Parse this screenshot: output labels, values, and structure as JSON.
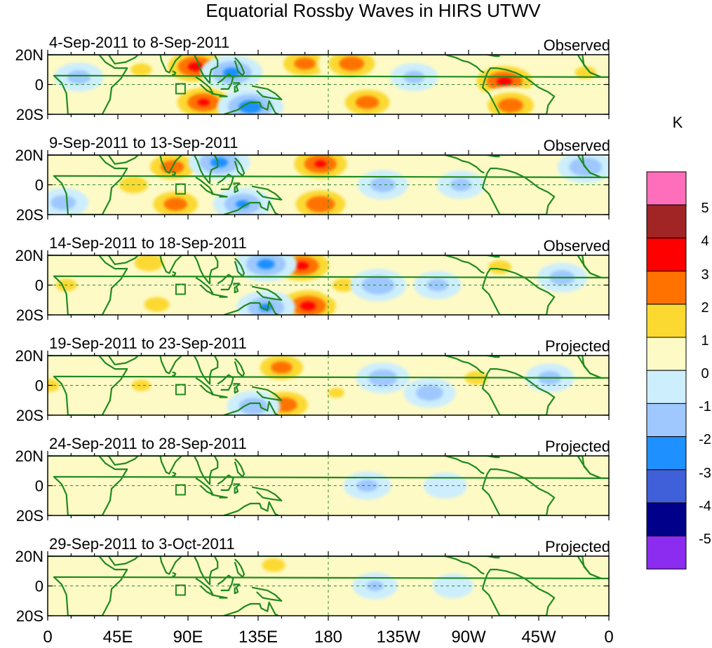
{
  "title": "Equatorial Rossby Waves in HIRS UTWV",
  "panels": [
    {
      "date_range": "4-Sep-2011 to 8-Sep-2011",
      "status": "Observed"
    },
    {
      "date_range": "9-Sep-2011 to 13-Sep-2011",
      "status": "Observed"
    },
    {
      "date_range": "14-Sep-2011 to 18-Sep-2011",
      "status": "Observed"
    },
    {
      "date_range": "19-Sep-2011 to 23-Sep-2011",
      "status": "Projected"
    },
    {
      "date_range": "24-Sep-2011 to 28-Sep-2011",
      "status": "Projected"
    },
    {
      "date_range": "29-Sep-2011 to 3-Oct-2011",
      "status": "Projected"
    }
  ],
  "lat_labels": [
    "20N",
    "0",
    "20S"
  ],
  "lon_labels": [
    "0",
    "45E",
    "90E",
    "135E",
    "180",
    "135W",
    "90W",
    "45W",
    "0"
  ],
  "colorbar": {
    "unit": "K",
    "colors": [
      "#8b2cf0",
      "#00008b",
      "#3f60d8",
      "#1e90ff",
      "#9ec8ff",
      "#cdeefc",
      "#fdfac6",
      "#fcd930",
      "#ff7200",
      "#ff0000",
      "#a12525",
      "#ff6eba"
    ],
    "tick_labels": [
      "-5",
      "-4",
      "-3",
      "-2",
      "-1",
      "0",
      "1",
      "2",
      "3",
      "4",
      "5"
    ]
  },
  "anomaly_blobs": [
    [
      {
        "lon": 95,
        "lat": 12,
        "value": 3.2
      },
      {
        "lon": 100,
        "lat": -12,
        "value": 3.0
      },
      {
        "lon": 118,
        "lat": 8,
        "value": -2.2
      },
      {
        "lon": 130,
        "lat": -15,
        "value": -2.5
      },
      {
        "lon": 165,
        "lat": 14,
        "value": 2.4
      },
      {
        "lon": 195,
        "lat": 14,
        "value": 2.6
      },
      {
        "lon": 205,
        "lat": -12,
        "value": 2.5
      },
      {
        "lon": 293,
        "lat": 2,
        "value": 3.2
      },
      {
        "lon": 297,
        "lat": -14,
        "value": 2.6
      },
      {
        "lon": 235,
        "lat": 5,
        "value": -1.2
      },
      {
        "lon": 20,
        "lat": 5,
        "value": -1.3
      },
      {
        "lon": 60,
        "lat": 10,
        "value": 1.2
      },
      {
        "lon": 345,
        "lat": 8,
        "value": 1.2
      }
    ],
    [
      {
        "lon": 80,
        "lat": 12,
        "value": 2.5
      },
      {
        "lon": 82,
        "lat": -13,
        "value": 2.5
      },
      {
        "lon": 110,
        "lat": 15,
        "value": -2.2
      },
      {
        "lon": 125,
        "lat": -13,
        "value": -2.0
      },
      {
        "lon": 175,
        "lat": 14,
        "value": 3.0
      },
      {
        "lon": 175,
        "lat": -13,
        "value": 2.8
      },
      {
        "lon": 55,
        "lat": 0,
        "value": 1.6
      },
      {
        "lon": 215,
        "lat": 0,
        "value": -1.4
      },
      {
        "lon": 265,
        "lat": 0,
        "value": -1.2
      },
      {
        "lon": 345,
        "lat": 12,
        "value": -1.8
      },
      {
        "lon": 10,
        "lat": -12,
        "value": -1.4
      }
    ],
    [
      {
        "lon": 163,
        "lat": 13,
        "value": 3.1
      },
      {
        "lon": 167,
        "lat": -14,
        "value": 3.2
      },
      {
        "lon": 140,
        "lat": 14,
        "value": -2.2
      },
      {
        "lon": 140,
        "lat": -15,
        "value": -2.0
      },
      {
        "lon": 65,
        "lat": 15,
        "value": 1.6
      },
      {
        "lon": 70,
        "lat": -13,
        "value": 1.4
      },
      {
        "lon": 190,
        "lat": 0,
        "value": 1.3
      },
      {
        "lon": 212,
        "lat": 0,
        "value": -1.8
      },
      {
        "lon": 250,
        "lat": 0,
        "value": -1.2
      },
      {
        "lon": 290,
        "lat": 12,
        "value": 1.3
      },
      {
        "lon": 330,
        "lat": 5,
        "value": -1.4
      },
      {
        "lon": 12,
        "lat": 0,
        "value": 1.2
      }
    ],
    [
      {
        "lon": 150,
        "lat": 12,
        "value": 2.4
      },
      {
        "lon": 152,
        "lat": -13,
        "value": 2.6
      },
      {
        "lon": 132,
        "lat": -14,
        "value": -1.6
      },
      {
        "lon": 215,
        "lat": 5,
        "value": -1.6
      },
      {
        "lon": 245,
        "lat": -5,
        "value": -1.5
      },
      {
        "lon": 275,
        "lat": 5,
        "value": 1.3
      },
      {
        "lon": 322,
        "lat": 5,
        "value": -1.3
      },
      {
        "lon": 0,
        "lat": 0,
        "value": 1.3
      },
      {
        "lon": 60,
        "lat": 0,
        "value": 1.1
      },
      {
        "lon": 185,
        "lat": -5,
        "value": 1.0
      }
    ],
    [
      {
        "lon": 150,
        "lat": 5,
        "value": 0.9
      },
      {
        "lon": 205,
        "lat": 0,
        "value": -1.2
      },
      {
        "lon": 255,
        "lat": 0,
        "value": -0.9
      },
      {
        "lon": 40,
        "lat": 0,
        "value": 0.6
      }
    ],
    [
      {
        "lon": 145,
        "lat": 14,
        "value": 1.3
      },
      {
        "lon": 210,
        "lat": 0,
        "value": -1.0
      },
      {
        "lon": 260,
        "lat": 0,
        "value": -0.7
      },
      {
        "lon": 40,
        "lat": 0,
        "value": 0.6
      }
    ]
  ]
}
